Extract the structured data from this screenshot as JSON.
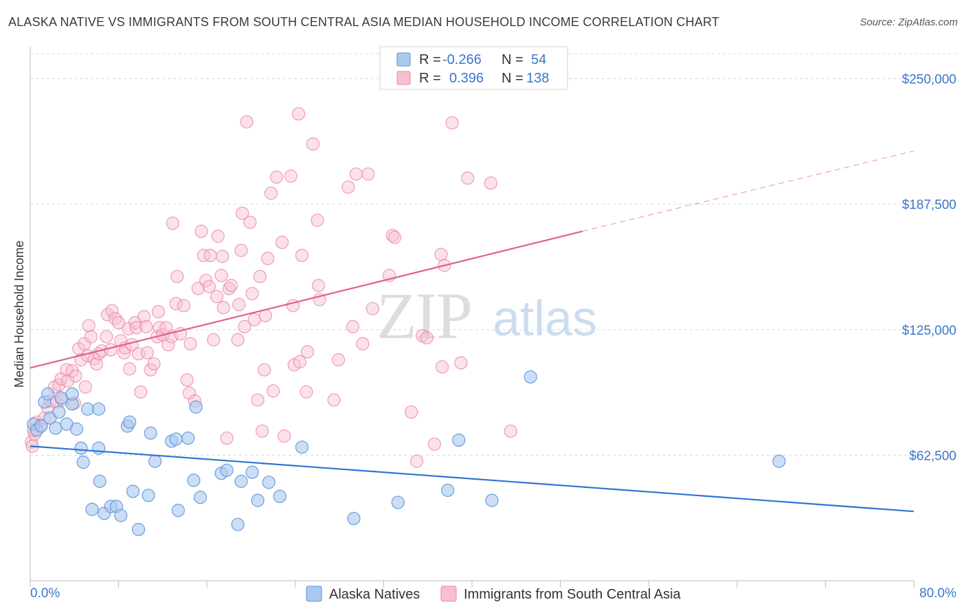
{
  "header": {
    "title": "ALASKA NATIVE VS IMMIGRANTS FROM SOUTH CENTRAL ASIA MEDIAN HOUSEHOLD INCOME CORRELATION CHART",
    "source": "Source: ZipAtlas.com"
  },
  "watermark": {
    "zip": "ZIP",
    "atlas": "atlas"
  },
  "legend_top": {
    "rows": [
      {
        "r_label": "R =",
        "r_value": "-0.266",
        "n_label": "N =",
        "n_value": "54"
      },
      {
        "r_label": "R =",
        "r_value": "0.396",
        "n_label": "N =",
        "n_value": "138"
      }
    ]
  },
  "legend_bottom": {
    "items": [
      {
        "label": "Alaska Natives"
      },
      {
        "label": "Immigrants from South Central Asia"
      }
    ]
  },
  "colors": {
    "blue_fill": "#aac8ee",
    "blue_stroke": "#5b93db",
    "blue_line": "#2f73d2",
    "pink_fill": "#f7bfd1",
    "pink_stroke": "#ea86a8",
    "pink_line": "#e0608c",
    "tick_text": "#3b76c8",
    "grid": "#d8d8d8"
  },
  "chart_data": {
    "type": "scatter",
    "title": "ALASKA NATIVE VS IMMIGRANTS FROM SOUTH CENTRAL ASIA MEDIAN HOUSEHOLD INCOME CORRELATION CHART",
    "xlabel": "",
    "ylabel": "Median Household Income",
    "xlim": [
      0,
      80
    ],
    "ylim": [
      0,
      262500
    ],
    "x_tick_labels": [
      "0.0%",
      "80.0%"
    ],
    "y_ticks": [
      62500,
      125000,
      187500,
      250000
    ],
    "y_tick_labels": [
      "$62,500",
      "$125,000",
      "$187,500",
      "$250,000"
    ],
    "grid": true,
    "legend_position": "top-center",
    "series": [
      {
        "name": "Alaska Natives",
        "r": -0.266,
        "n": 54,
        "trend": {
          "x": [
            0,
            80
          ],
          "y": [
            67000,
            34500
          ]
        },
        "points": [
          [
            0.3,
            78000
          ],
          [
            0.6,
            75000
          ],
          [
            1.0,
            77000
          ],
          [
            1.3,
            89000
          ],
          [
            1.6,
            93000
          ],
          [
            1.8,
            81000
          ],
          [
            2.3,
            76000
          ],
          [
            2.6,
            84000
          ],
          [
            2.8,
            91000
          ],
          [
            3.3,
            78000
          ],
          [
            3.8,
            88000
          ],
          [
            3.8,
            93000
          ],
          [
            4.2,
            75500
          ],
          [
            4.6,
            66000
          ],
          [
            4.8,
            59000
          ],
          [
            5.2,
            85500
          ],
          [
            5.6,
            35500
          ],
          [
            6.2,
            66000
          ],
          [
            6.2,
            85500
          ],
          [
            6.3,
            49500
          ],
          [
            6.7,
            33500
          ],
          [
            7.3,
            37000
          ],
          [
            7.8,
            37000
          ],
          [
            8.2,
            32500
          ],
          [
            8.8,
            77000
          ],
          [
            9.0,
            79000
          ],
          [
            9.3,
            44500
          ],
          [
            9.8,
            25500
          ],
          [
            10.7,
            42500
          ],
          [
            10.9,
            73500
          ],
          [
            11.3,
            59500
          ],
          [
            12.8,
            69500
          ],
          [
            13.2,
            70500
          ],
          [
            13.4,
            35000
          ],
          [
            14.3,
            71000
          ],
          [
            14.8,
            50000
          ],
          [
            15.0,
            86500
          ],
          [
            15.4,
            41500
          ],
          [
            17.3,
            53500
          ],
          [
            17.8,
            55000
          ],
          [
            18.8,
            28000
          ],
          [
            19.1,
            49500
          ],
          [
            20.1,
            54000
          ],
          [
            20.6,
            40000
          ],
          [
            21.6,
            49000
          ],
          [
            22.6,
            42000
          ],
          [
            24.6,
            66500
          ],
          [
            29.3,
            31000
          ],
          [
            33.3,
            39000
          ],
          [
            37.8,
            45000
          ],
          [
            38.8,
            70000
          ],
          [
            41.8,
            40000
          ],
          [
            45.3,
            101500
          ],
          [
            67.8,
            59500
          ]
        ]
      },
      {
        "name": "Immigrants from South Central Asia",
        "r": 0.396,
        "n": 138,
        "trend": {
          "x": [
            0,
            50
          ],
          "y": [
            106000,
            174000
          ]
        },
        "trend_dashed": {
          "x": [
            50,
            80
          ],
          "y": [
            174000,
            214000
          ]
        },
        "points": [
          [
            0.1,
            69000
          ],
          [
            0.3,
            75000
          ],
          [
            0.4,
            73000
          ],
          [
            0.6,
            79000
          ],
          [
            0.9,
            77500
          ],
          [
            1.3,
            81000
          ],
          [
            1.6,
            86000
          ],
          [
            1.8,
            89500
          ],
          [
            2.2,
            96500
          ],
          [
            2.4,
            89000
          ],
          [
            2.6,
            97500
          ],
          [
            2.8,
            100500
          ],
          [
            2.9,
            90000
          ],
          [
            3.3,
            105000
          ],
          [
            3.4,
            99500
          ],
          [
            3.8,
            104500
          ],
          [
            4.0,
            88500
          ],
          [
            4.1,
            102000
          ],
          [
            4.4,
            115500
          ],
          [
            4.6,
            110000
          ],
          [
            4.9,
            118000
          ],
          [
            5.0,
            96500
          ],
          [
            5.2,
            112000
          ],
          [
            5.3,
            127000
          ],
          [
            5.5,
            121500
          ],
          [
            5.8,
            110500
          ],
          [
            6.0,
            108000
          ],
          [
            6.2,
            113000
          ],
          [
            6.5,
            114500
          ],
          [
            6.9,
            121500
          ],
          [
            7.0,
            132500
          ],
          [
            7.3,
            115000
          ],
          [
            7.4,
            134500
          ],
          [
            7.7,
            130500
          ],
          [
            8.0,
            128500
          ],
          [
            8.2,
            119500
          ],
          [
            8.5,
            113500
          ],
          [
            8.6,
            116000
          ],
          [
            8.9,
            125500
          ],
          [
            9.0,
            105500
          ],
          [
            9.2,
            117500
          ],
          [
            9.5,
            128500
          ],
          [
            9.6,
            126000
          ],
          [
            9.8,
            113000
          ],
          [
            10.0,
            94000
          ],
          [
            10.3,
            131500
          ],
          [
            10.5,
            126500
          ],
          [
            10.6,
            113500
          ],
          [
            10.9,
            105000
          ],
          [
            11.2,
            108000
          ],
          [
            11.5,
            121500
          ],
          [
            11.6,
            134000
          ],
          [
            11.7,
            126000
          ],
          [
            12.0,
            122500
          ],
          [
            12.3,
            126000
          ],
          [
            12.5,
            117500
          ],
          [
            12.8,
            121500
          ],
          [
            12.9,
            178000
          ],
          [
            13.2,
            138000
          ],
          [
            13.3,
            151500
          ],
          [
            13.6,
            123000
          ],
          [
            13.9,
            137000
          ],
          [
            14.2,
            100000
          ],
          [
            14.4,
            93500
          ],
          [
            14.5,
            118000
          ],
          [
            14.9,
            89500
          ],
          [
            15.2,
            145500
          ],
          [
            15.5,
            174000
          ],
          [
            15.7,
            162000
          ],
          [
            15.9,
            149500
          ],
          [
            16.2,
            146500
          ],
          [
            16.3,
            162000
          ],
          [
            16.6,
            120000
          ],
          [
            16.9,
            141500
          ],
          [
            17.0,
            171500
          ],
          [
            17.3,
            152000
          ],
          [
            17.4,
            161500
          ],
          [
            17.5,
            136000
          ],
          [
            17.8,
            71000
          ],
          [
            18.0,
            145500
          ],
          [
            18.2,
            147000
          ],
          [
            18.8,
            120000
          ],
          [
            18.9,
            137500
          ],
          [
            19.1,
            164500
          ],
          [
            19.2,
            183000
          ],
          [
            19.4,
            126500
          ],
          [
            19.6,
            228500
          ],
          [
            19.9,
            178500
          ],
          [
            20.1,
            143000
          ],
          [
            20.3,
            130000
          ],
          [
            20.6,
            90000
          ],
          [
            20.8,
            151500
          ],
          [
            21.0,
            74500
          ],
          [
            21.2,
            105000
          ],
          [
            21.3,
            132000
          ],
          [
            21.5,
            160500
          ],
          [
            21.8,
            193000
          ],
          [
            22.0,
            94500
          ],
          [
            22.3,
            201000
          ],
          [
            22.8,
            168500
          ],
          [
            23.0,
            72000
          ],
          [
            23.6,
            201500
          ],
          [
            23.8,
            137000
          ],
          [
            23.9,
            107500
          ],
          [
            24.3,
            232500
          ],
          [
            24.4,
            109000
          ],
          [
            24.6,
            162000
          ],
          [
            25.0,
            94000
          ],
          [
            25.1,
            114000
          ],
          [
            25.6,
            217500
          ],
          [
            26.0,
            179500
          ],
          [
            26.1,
            147000
          ],
          [
            26.2,
            140000
          ],
          [
            27.5,
            90000
          ],
          [
            27.9,
            110000
          ],
          [
            28.8,
            196000
          ],
          [
            29.2,
            126500
          ],
          [
            29.5,
            202500
          ],
          [
            30.1,
            118000
          ],
          [
            30.6,
            202500
          ],
          [
            31.0,
            135500
          ],
          [
            32.5,
            152000
          ],
          [
            32.8,
            172000
          ],
          [
            33.0,
            171000
          ],
          [
            34.5,
            84000
          ],
          [
            35.0,
            59500
          ],
          [
            35.5,
            122000
          ],
          [
            35.9,
            121000
          ],
          [
            36.6,
            68000
          ],
          [
            37.2,
            162500
          ],
          [
            37.3,
            106500
          ],
          [
            37.5,
            157000
          ],
          [
            38.2,
            228000
          ],
          [
            39.0,
            108500
          ],
          [
            39.6,
            200500
          ],
          [
            41.7,
            198000
          ],
          [
            43.5,
            74500
          ],
          [
            0.2,
            67000
          ]
        ]
      }
    ]
  }
}
